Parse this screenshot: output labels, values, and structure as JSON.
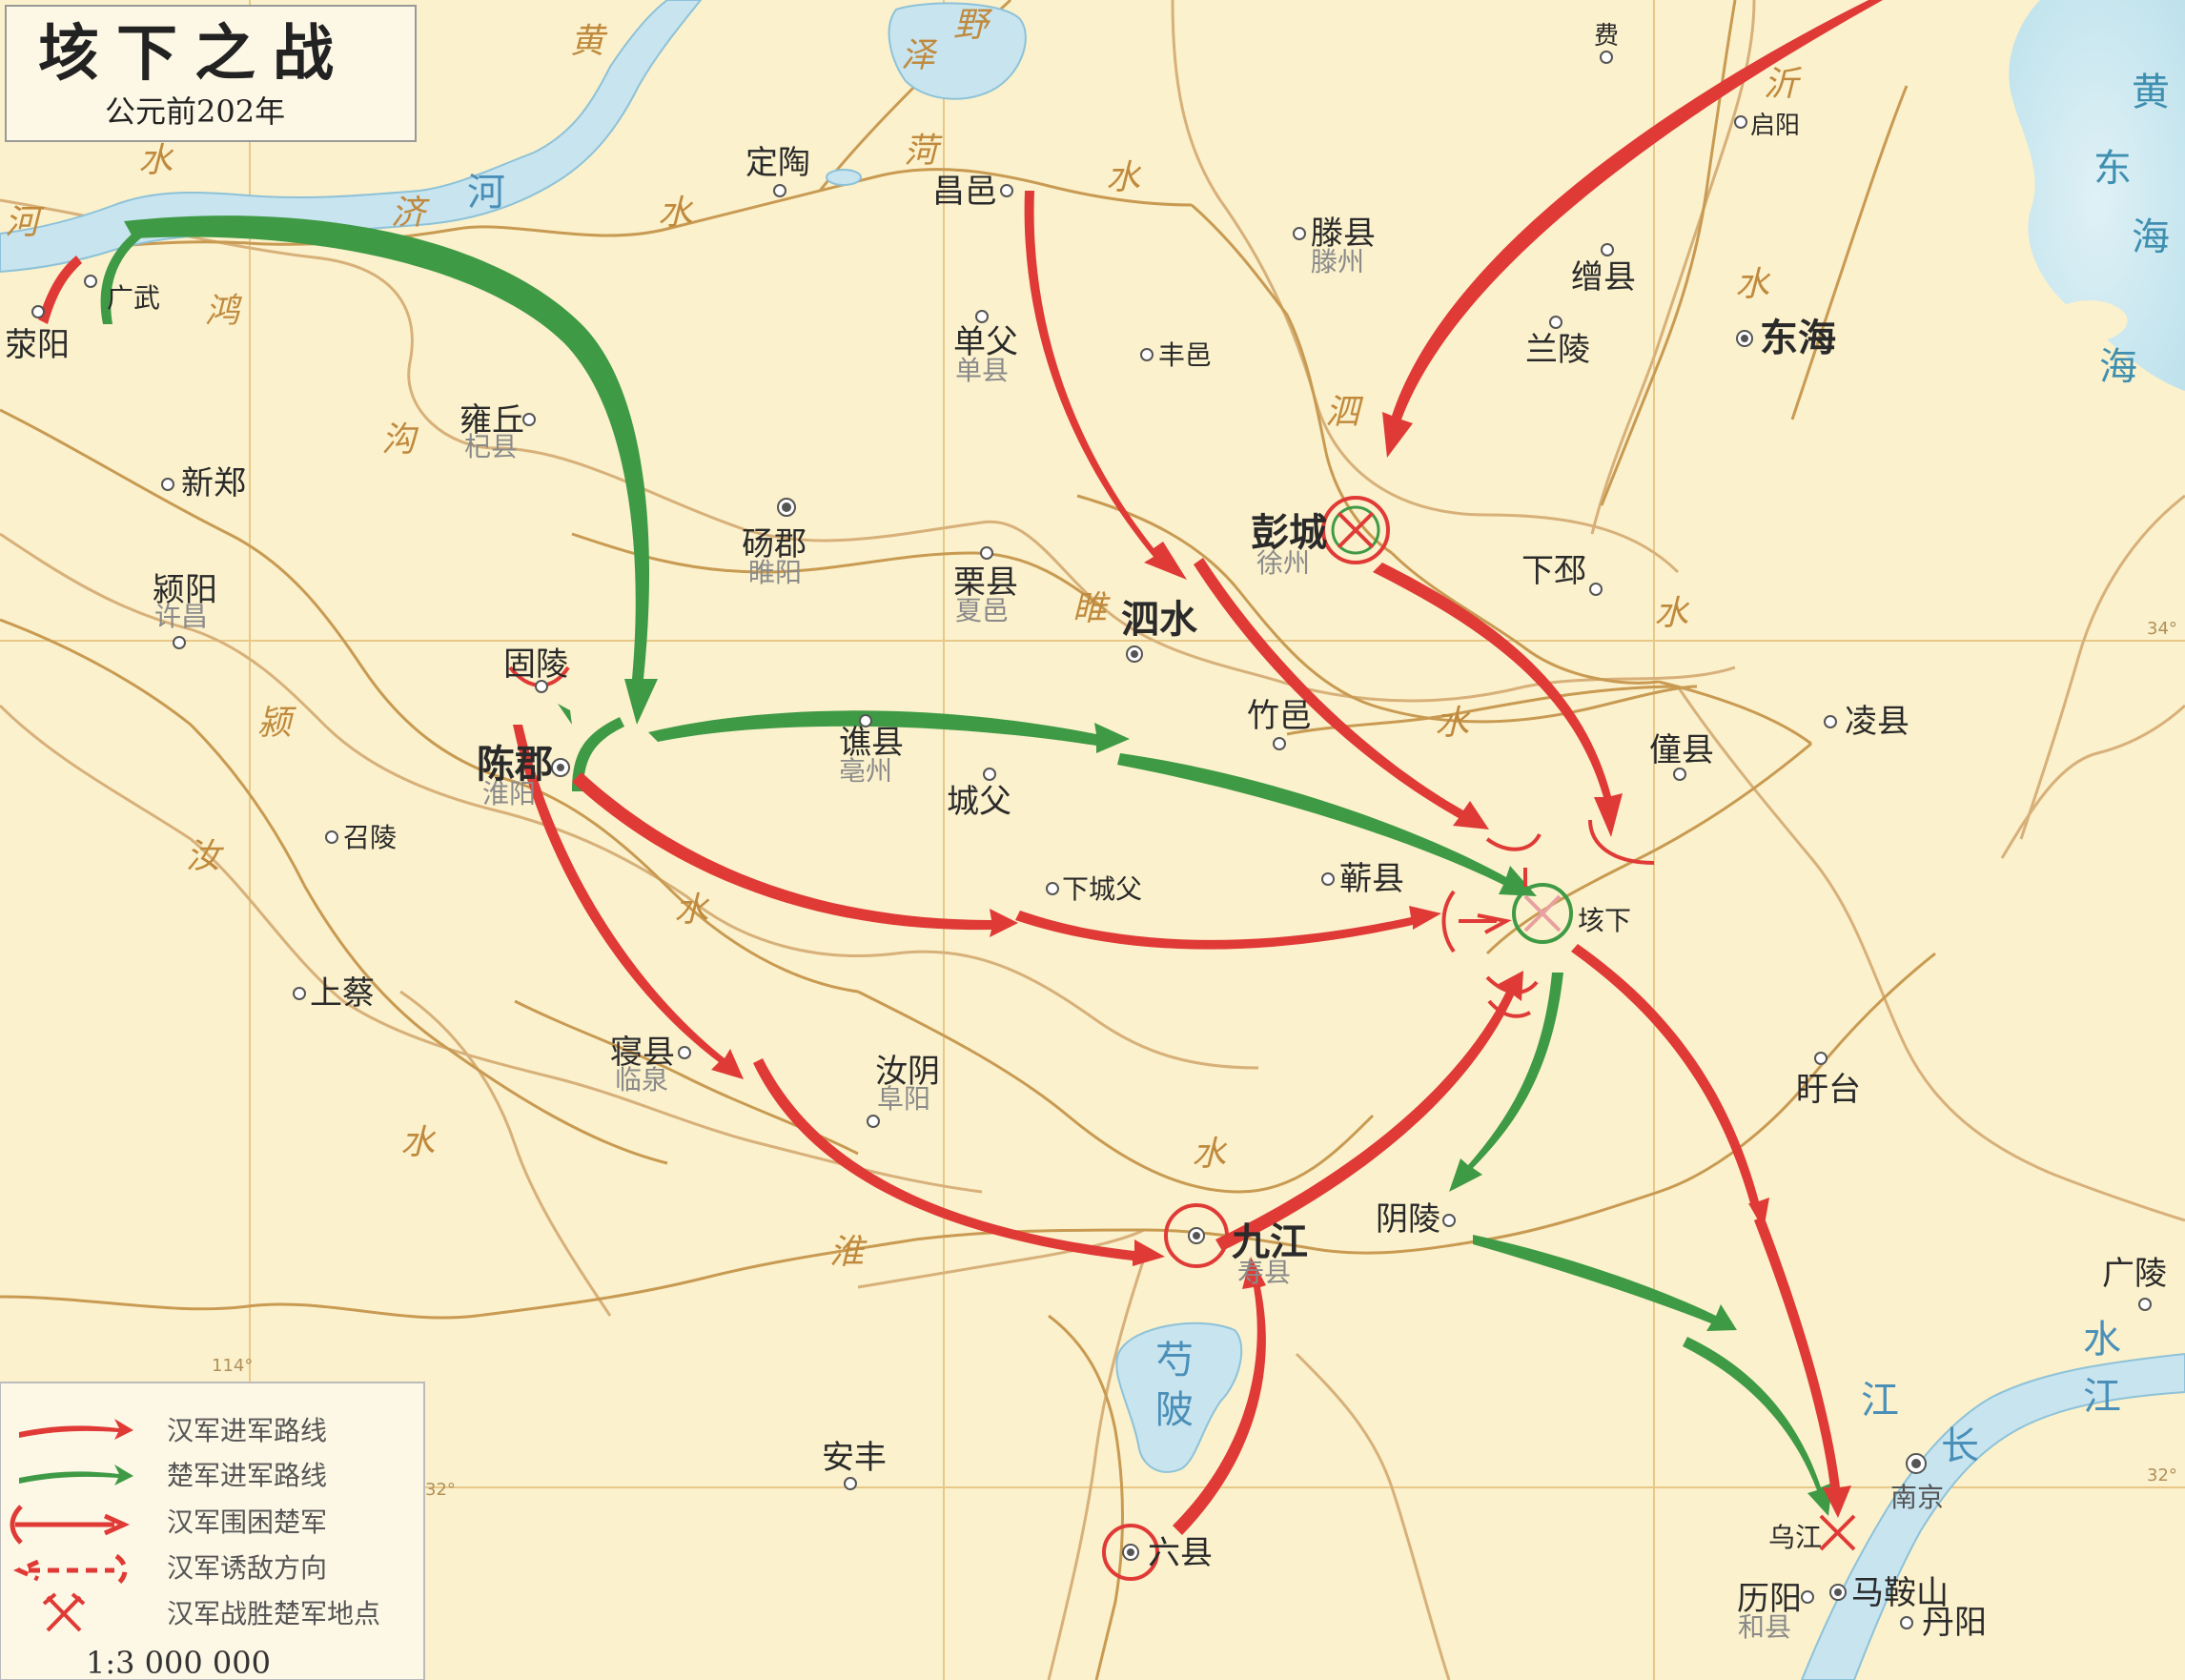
{
  "title": {
    "main": "垓下之战",
    "subtitle": "公元前202年"
  },
  "legend": {
    "items": [
      {
        "key": "han_advance",
        "label": "汉军进军路线",
        "color": "#e03a36",
        "icon": "red-arrow-icon"
      },
      {
        "key": "chu_advance",
        "label": "楚军进军路线",
        "color": "#3f9a45",
        "icon": "green-arrow-icon"
      },
      {
        "key": "han_siege",
        "label": "汉军围困楚军",
        "color": "#e03a36",
        "icon": "siege-arrow-icon"
      },
      {
        "key": "han_lure",
        "label": "汉军诱敌方向",
        "color": "#e03a36",
        "icon": "dashed-arrow-icon"
      },
      {
        "key": "han_victory",
        "label": "汉军战胜楚军地点",
        "color": "#e03a36",
        "icon": "crossed-swords-icon"
      }
    ],
    "scale": "1:3 000 000"
  },
  "graticule": {
    "lat_34": "34°",
    "lat_32": "32°",
    "lon_114": "114°"
  },
  "places": [
    {
      "id": "xingyang",
      "name": "荥阳"
    },
    {
      "id": "guangwu",
      "name": "广武"
    },
    {
      "id": "dingtao",
      "name": "定陶"
    },
    {
      "id": "changyi",
      "name": "昌邑"
    },
    {
      "id": "shanfu",
      "name": "单父",
      "modern": "单县"
    },
    {
      "id": "fengyi",
      "name": "丰邑"
    },
    {
      "id": "tengxian",
      "name": "滕县",
      "modern": "滕州"
    },
    {
      "id": "zengxian",
      "name": "缯县"
    },
    {
      "id": "lanling",
      "name": "兰陵"
    },
    {
      "id": "donghai",
      "name": "东海"
    },
    {
      "id": "qiyang",
      "name": "启阳"
    },
    {
      "id": "fei",
      "name": "费"
    },
    {
      "id": "yongqiu",
      "name": "雍丘",
      "modern": "杞县"
    },
    {
      "id": "xinzheng",
      "name": "新郑"
    },
    {
      "id": "yingyang",
      "name": "颍阳",
      "modern": "许昌"
    },
    {
      "id": "dangjun",
      "name": "砀郡",
      "modern": "睢阳"
    },
    {
      "id": "lixian",
      "name": "栗县",
      "modern": "夏邑"
    },
    {
      "id": "sishui",
      "name": "泗水"
    },
    {
      "id": "pengcheng",
      "name": "彭城",
      "modern": "徐州"
    },
    {
      "id": "xiapi",
      "name": "下邳"
    },
    {
      "id": "guling",
      "name": "固陵"
    },
    {
      "id": "chenjun",
      "name": "陈郡",
      "modern": "淮阳"
    },
    {
      "id": "qiaoxian",
      "name": "谯县",
      "modern": "亳州"
    },
    {
      "id": "chengfu",
      "name": "城父"
    },
    {
      "id": "zhuyi",
      "name": "竹邑"
    },
    {
      "id": "tongxian",
      "name": "僮县"
    },
    {
      "id": "lingxian",
      "name": "凌县"
    },
    {
      "id": "shaoling",
      "name": "召陵"
    },
    {
      "id": "xiachengfu",
      "name": "下城父"
    },
    {
      "id": "qixian",
      "name": "蕲县"
    },
    {
      "id": "gaixia",
      "name": "垓下"
    },
    {
      "id": "shangcai",
      "name": "上蔡"
    },
    {
      "id": "qinxian",
      "name": "寝县",
      "modern": "临泉"
    },
    {
      "id": "ruyin",
      "name": "汝阴",
      "modern": "阜阳"
    },
    {
      "id": "xuyi",
      "name": "盱台"
    },
    {
      "id": "yinling",
      "name": "阴陵"
    },
    {
      "id": "jiujiang",
      "name": "九江",
      "modern": "寿县"
    },
    {
      "id": "guangling",
      "name": "广陵"
    },
    {
      "id": "anfeng",
      "name": "安丰"
    },
    {
      "id": "liuxian",
      "name": "六县"
    },
    {
      "id": "nanjing",
      "name": "南京"
    },
    {
      "id": "wujiang",
      "name": "乌江"
    },
    {
      "id": "liyang",
      "name": "历阳",
      "modern": "和县"
    },
    {
      "id": "maanshan",
      "name": "马鞍山"
    },
    {
      "id": "danyang",
      "name": "丹阳"
    }
  ],
  "water_labels": {
    "huang_river": "黄",
    "he": "河",
    "ji": "济",
    "shui1": "水",
    "shui2": "水",
    "shui3": "水",
    "shui4": "水",
    "shui5": "水",
    "shui6": "水",
    "shui7": "水",
    "shui8": "水",
    "shui9": "水",
    "hong1": "鸿",
    "gou1": "沟",
    "he_left": "河",
    "daze1": "泽",
    "daze2": "野",
    "he_north": "菏",
    "yi": "沂",
    "si": "泗",
    "sui": "睢",
    "ying": "颍",
    "ru": "汝",
    "huai": "淮",
    "huang_sea": "黄",
    "dong": "东",
    "hai1": "海",
    "hai2": "海",
    "shao1": "芍",
    "shao2": "陂",
    "jiang1": "江",
    "jiang2": "江",
    "chang": "长"
  }
}
